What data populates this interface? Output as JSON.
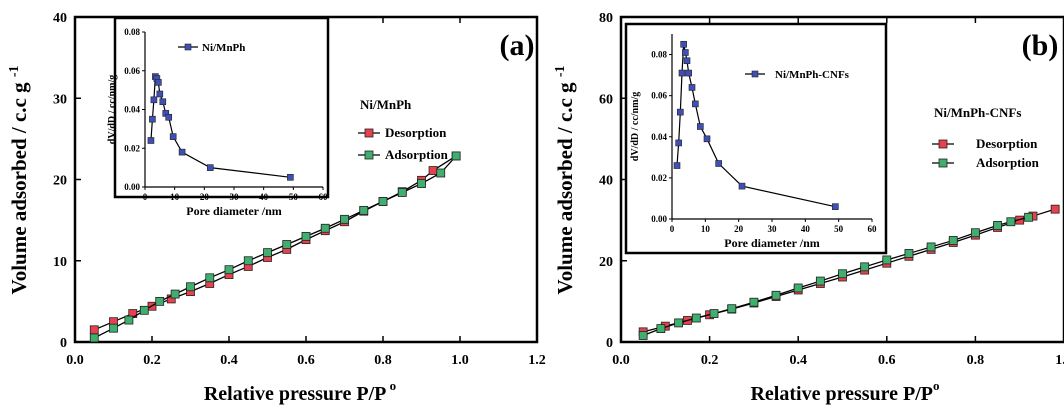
{
  "chart_data": [
    {
      "type": "line",
      "panel_label": "(a)",
      "xlabel": "Relative pressure P/P",
      "xlabel_sup": "o",
      "ylabel": "Volume adsorbed / c.c g",
      "ylabel_sup": "-1",
      "xlim": [
        0.0,
        1.2
      ],
      "ylim": [
        0,
        40
      ],
      "xticks": [
        "0.0",
        "0.2",
        "0.4",
        "0.6",
        "0.8",
        "1.0",
        "1.2"
      ],
      "yticks": [
        "0",
        "10",
        "20",
        "30",
        "40"
      ],
      "legend_title": "Ni/MnPh",
      "legend_position": "right",
      "series": [
        {
          "name": "Desorption",
          "color": "#e8414d",
          "x": [
            0.05,
            0.1,
            0.15,
            0.2,
            0.25,
            0.3,
            0.35,
            0.4,
            0.45,
            0.5,
            0.55,
            0.6,
            0.65,
            0.7,
            0.75,
            0.8,
            0.85,
            0.9,
            0.93,
            0.99
          ],
          "y": [
            1.5,
            2.5,
            3.5,
            4.4,
            5.3,
            6.2,
            7.2,
            8.3,
            9.3,
            10.4,
            11.4,
            12.6,
            13.7,
            14.8,
            16.1,
            17.3,
            18.5,
            19.9,
            21.1,
            22.9
          ]
        },
        {
          "name": "Adsorption",
          "color": "#3fae6e",
          "x": [
            0.05,
            0.1,
            0.14,
            0.18,
            0.22,
            0.26,
            0.3,
            0.35,
            0.4,
            0.45,
            0.5,
            0.55,
            0.6,
            0.65,
            0.7,
            0.75,
            0.8,
            0.85,
            0.9,
            0.95,
            0.99
          ],
          "y": [
            0.5,
            1.7,
            2.7,
            3.9,
            5.0,
            5.9,
            6.8,
            7.9,
            8.9,
            10.0,
            11.0,
            12.0,
            13.0,
            14.0,
            15.1,
            16.2,
            17.3,
            18.4,
            19.5,
            20.8,
            22.9
          ]
        }
      ],
      "inset": {
        "type": "line",
        "xlabel": "Pore diameter /nm",
        "ylabel": "dV/dD / cc/nm/g",
        "xlim": [
          0,
          60
        ],
        "ylim": [
          0,
          0.08
        ],
        "xticks": [
          "0",
          "10",
          "20",
          "30",
          "40",
          "50",
          "60"
        ],
        "yticks": [
          "0.00",
          "0.02",
          "0.04",
          "0.06",
          "0.08"
        ],
        "series": [
          {
            "name": "Ni/MnPh",
            "color": "#3f4fb5",
            "x": [
              2.0,
              2.5,
              3.0,
              3.5,
              4.0,
              4.5,
              5.0,
              6.0,
              7.0,
              8.0,
              9.5,
              12.5,
              22,
              49
            ],
            "y": [
              0.024,
              0.035,
              0.045,
              0.057,
              0.056,
              0.054,
              0.048,
              0.044,
              0.038,
              0.036,
              0.026,
              0.018,
              0.01,
              0.005
            ]
          }
        ]
      }
    },
    {
      "type": "line",
      "panel_label": "(b)",
      "xlabel": "Relative pressure P/P",
      "xlabel_sup": "o",
      "ylabel": "Volume adsorbed / c.c g",
      "ylabel_sup": "-1",
      "xlim": [
        0.0,
        1.0
      ],
      "ylim": [
        0,
        80
      ],
      "xticks": [
        "0.0",
        "0.2",
        "0.4",
        "0.6",
        "0.8",
        "1.0"
      ],
      "yticks": [
        "0",
        "20",
        "40",
        "60",
        "80"
      ],
      "legend_title": "Ni/MnPh-CNFs",
      "legend_position": "right",
      "series": [
        {
          "name": "Desorption",
          "color": "#e8414d",
          "x": [
            0.05,
            0.1,
            0.15,
            0.2,
            0.25,
            0.3,
            0.35,
            0.4,
            0.45,
            0.5,
            0.55,
            0.6,
            0.65,
            0.7,
            0.75,
            0.8,
            0.85,
            0.9,
            0.93,
            0.98
          ],
          "y": [
            2.5,
            3.9,
            5.3,
            6.7,
            8.1,
            9.6,
            11.2,
            12.8,
            14.4,
            16.0,
            17.7,
            19.4,
            21.1,
            22.8,
            24.5,
            26.3,
            28.2,
            30.0,
            31.0,
            32.7
          ]
        },
        {
          "name": "Adsorption",
          "color": "#3fae6e",
          "x": [
            0.05,
            0.09,
            0.13,
            0.17,
            0.21,
            0.25,
            0.3,
            0.35,
            0.4,
            0.45,
            0.5,
            0.55,
            0.6,
            0.65,
            0.7,
            0.75,
            0.8,
            0.85,
            0.88,
            0.92
          ],
          "y": [
            1.6,
            3.3,
            4.7,
            5.9,
            7.0,
            8.2,
            9.8,
            11.5,
            13.3,
            15.0,
            16.8,
            18.5,
            20.2,
            21.8,
            23.4,
            25.0,
            26.9,
            28.7,
            29.6,
            30.7
          ]
        }
      ],
      "inset": {
        "type": "line",
        "xlabel": "Pore diameter /nm",
        "ylabel": "dV/dD / cc/nm/g",
        "xlim": [
          0,
          60
        ],
        "ylim": [
          0,
          0.09
        ],
        "xticks": [
          "0",
          "10",
          "20",
          "30",
          "40",
          "50",
          "60"
        ],
        "yticks": [
          "0.00",
          "0.02",
          "0.04",
          "0.06",
          "0.08"
        ],
        "series": [
          {
            "name": "Ni/MnPh-CNFs",
            "color": "#3f4fb5",
            "x": [
              1.5,
              2.0,
              2.5,
              3.0,
              3.5,
              4.0,
              4.5,
              5.0,
              6.0,
              7.0,
              8.5,
              10.5,
              14,
              21,
              49
            ],
            "y": [
              0.026,
              0.037,
              0.052,
              0.071,
              0.085,
              0.081,
              0.077,
              0.071,
              0.064,
              0.056,
              0.045,
              0.039,
              0.027,
              0.016,
              0.006
            ]
          }
        ]
      }
    }
  ]
}
